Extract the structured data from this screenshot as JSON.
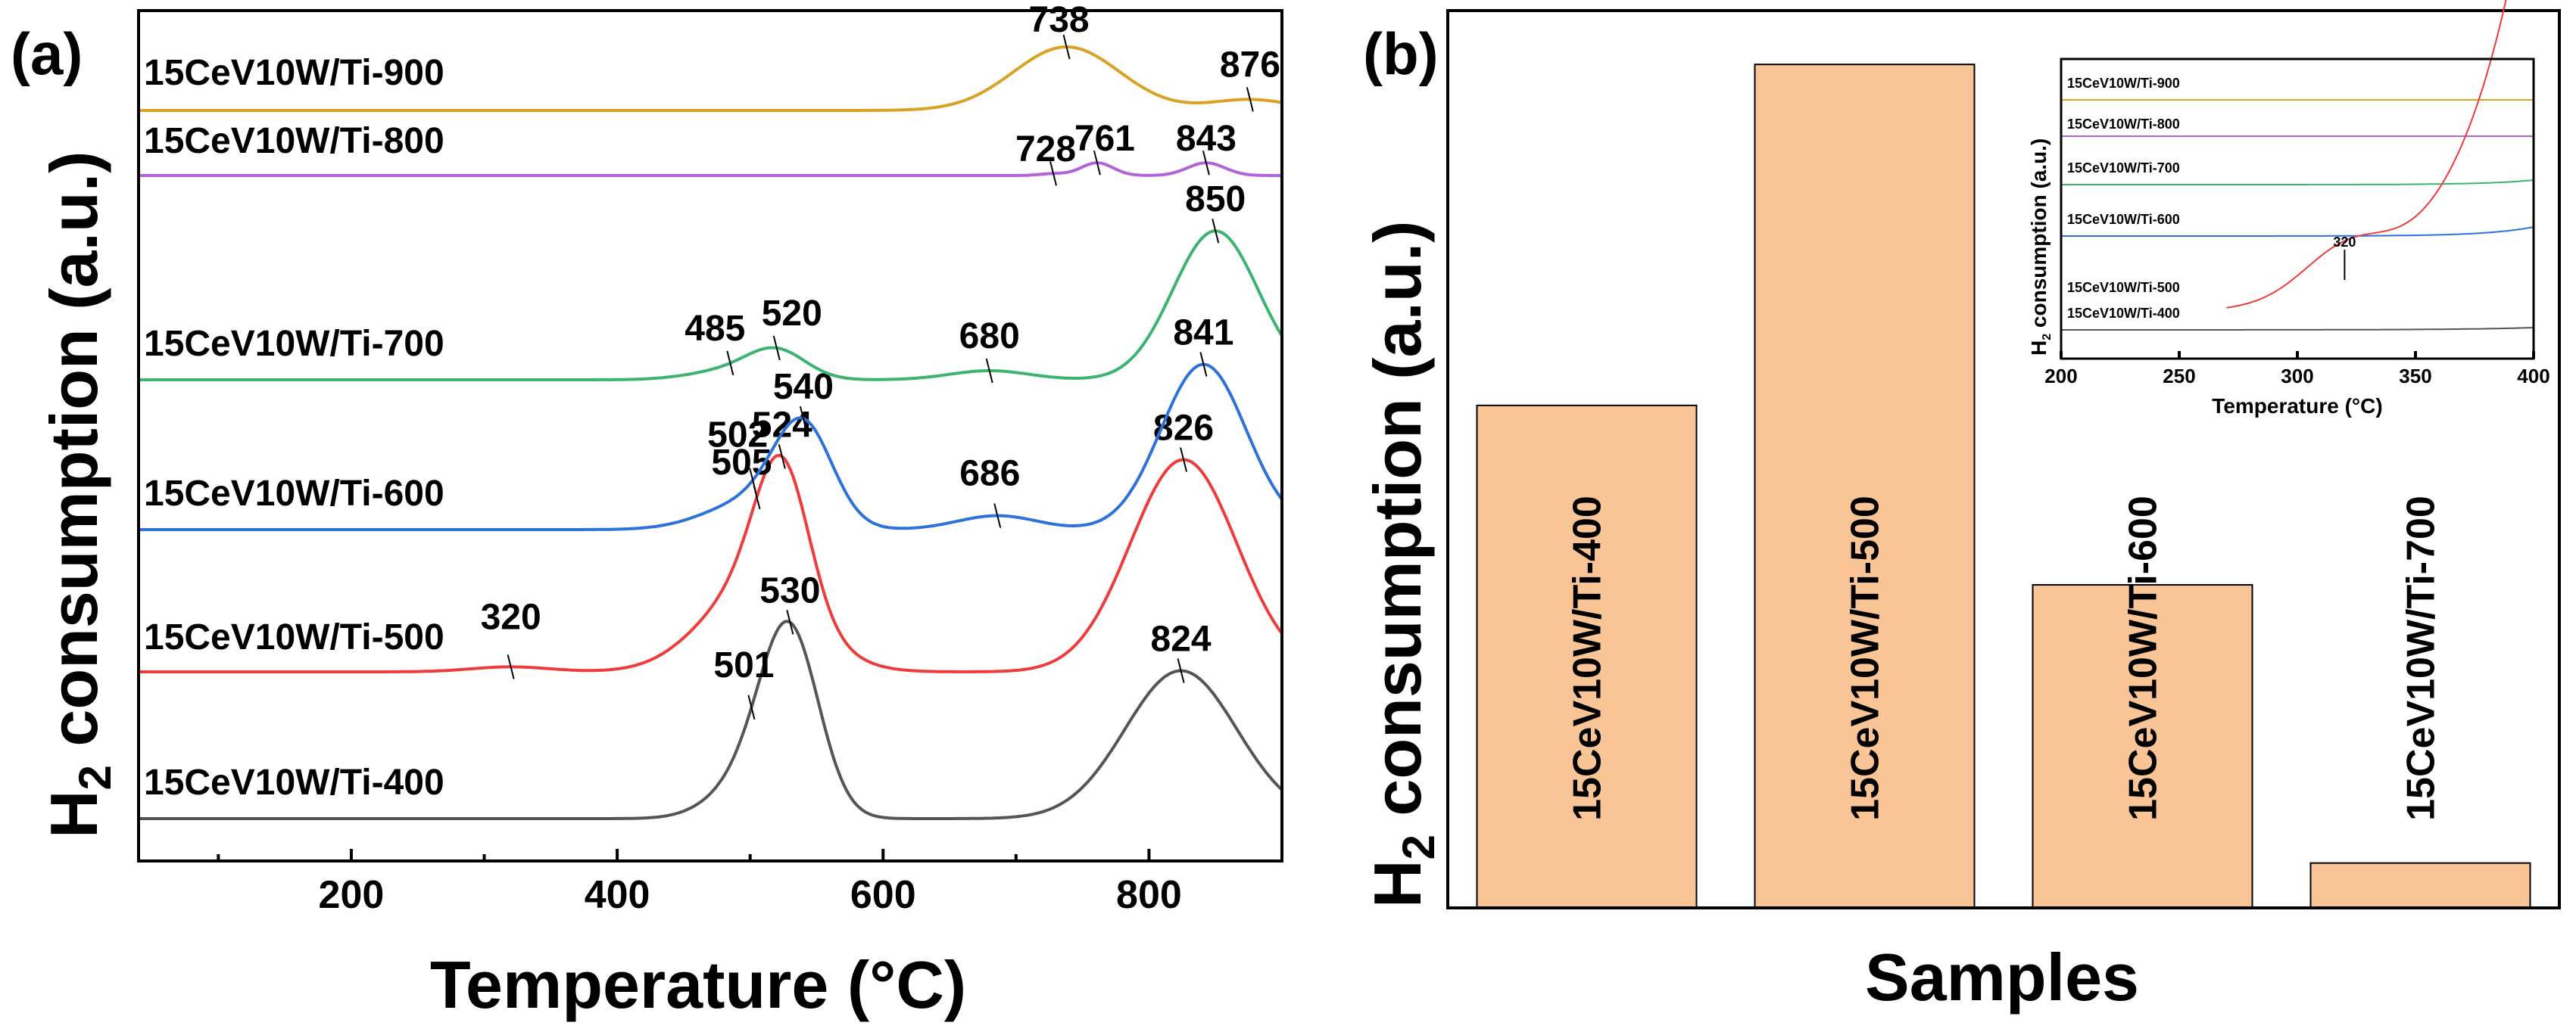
{
  "chart_data": [
    {
      "type": "line",
      "panel_label": "(a)",
      "xlabel": "Temperature (°C)",
      "ylabel": "H2 consumption (a.u.)",
      "ylabel_parts": {
        "pre": "H",
        "sub": "2",
        "post": " consumption (a.u.)"
      },
      "xlim": [
        40,
        900
      ],
      "xticks": [
        200,
        400,
        600,
        800
      ],
      "series": [
        {
          "name": "15CeV10W/Ti-400",
          "color": "#555555",
          "peaks": [
            {
              "x": 501,
              "label": "501",
              "h": 0.22,
              "w": 28
            },
            {
              "x": 530,
              "label": "530",
              "h": 1.0,
              "w": 22
            },
            {
              "x": 824,
              "label": "824",
              "h": 0.85,
              "w": 42
            }
          ]
        },
        {
          "name": "15CeV10W/Ti-500",
          "color": "#ee3b3b",
          "peaks": [
            {
              "x": 320,
              "label": "320",
              "h": 0.02,
              "w": 30
            },
            {
              "x": 505,
              "label": "505",
              "h": 0.35,
              "w": 40
            },
            {
              "x": 524,
              "label": "524",
              "h": 0.55,
              "w": 20
            },
            {
              "x": 826,
              "label": "826",
              "h": 0.85,
              "w": 40
            }
          ]
        },
        {
          "name": "15CeV10W/Ti-600",
          "color": "#2d72d9",
          "peaks": [
            {
              "x": 502,
              "label": "502",
              "h": 0.16,
              "w": 35
            },
            {
              "x": 540,
              "label": "540",
              "h": 0.55,
              "w": 22
            },
            {
              "x": 686,
              "label": "686",
              "h": 0.08,
              "w": 30
            },
            {
              "x": 841,
              "label": "841",
              "h": 0.95,
              "w": 32
            }
          ]
        },
        {
          "name": "15CeV10W/Ti-700",
          "color": "#3cb371",
          "peaks": [
            {
              "x": 485,
              "label": "485",
              "h": 0.05,
              "w": 30
            },
            {
              "x": 520,
              "label": "520",
              "h": 0.15,
              "w": 22
            },
            {
              "x": 680,
              "label": "680",
              "h": 0.05,
              "w": 30
            },
            {
              "x": 850,
              "label": "850",
              "h": 0.82,
              "w": 32
            }
          ]
        },
        {
          "name": "15CeV10W/Ti-800",
          "color": "#b064d8",
          "peaks": [
            {
              "x": 728,
              "label": "728",
              "h": 0.01,
              "w": 10
            },
            {
              "x": 761,
              "label": "761",
              "h": 0.07,
              "w": 12
            },
            {
              "x": 843,
              "label": "843",
              "h": 0.07,
              "w": 14
            }
          ]
        },
        {
          "name": "15CeV10W/Ti-900",
          "color": "#d9a224",
          "peaks": [
            {
              "x": 738,
              "label": "738",
              "h": 0.35,
              "w": 40
            },
            {
              "x": 876,
              "label": "876",
              "h": 0.06,
              "w": 30
            }
          ]
        }
      ]
    },
    {
      "type": "bar",
      "panel_label": "(b)",
      "xlabel": "Samples",
      "ylabel": "H2 consumption (a.u.)",
      "ylabel_parts": {
        "pre": "H",
        "sub": "2",
        "post": " consumption (a.u.)"
      },
      "ylim": [
        0,
        100
      ],
      "bar_color": "#f9c597",
      "categories": [
        "15CeV10W/Ti-400",
        "15CeV10W/Ti-500",
        "15CeV10W/Ti-600",
        "15CeV10W/Ti-700"
      ],
      "values": [
        56,
        94,
        36,
        5
      ]
    },
    {
      "type": "line",
      "role": "inset",
      "xlabel": "Temperature (°C)",
      "ylabel": "H2 consumption (a.u.)",
      "ylabel_parts": {
        "pre": "H",
        "sub": "2",
        "post": " consumption (a.u.)"
      },
      "xlim": [
        200,
        400
      ],
      "xticks": [
        200,
        250,
        300,
        350,
        400
      ],
      "annotation": {
        "x": 320,
        "label": "320"
      },
      "series": [
        {
          "name": "15CeV10W/Ti-900",
          "color": "#d9a224"
        },
        {
          "name": "15CeV10W/Ti-800",
          "color": "#b064d8"
        },
        {
          "name": "15CeV10W/Ti-700",
          "color": "#3cb371"
        },
        {
          "name": "15CeV10W/Ti-600",
          "color": "#2d72d9"
        },
        {
          "name": "15CeV10W/Ti-500",
          "color": "#ee3b3b"
        },
        {
          "name": "15CeV10W/Ti-400",
          "color": "#555555"
        }
      ]
    }
  ]
}
